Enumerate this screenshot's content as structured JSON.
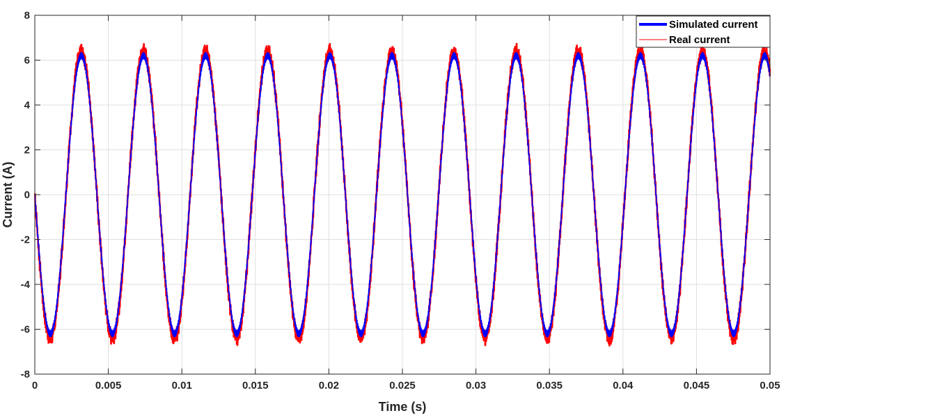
{
  "chart_data": {
    "type": "line",
    "title": "",
    "xlabel": "Time (s)",
    "ylabel": "Current (A)",
    "xlim": [
      0,
      0.05
    ],
    "ylim": [
      -8,
      8
    ],
    "xticks": [
      0,
      0.005,
      0.01,
      0.015,
      0.02,
      0.025,
      0.03,
      0.035,
      0.04,
      0.045,
      0.05
    ],
    "xtick_labels": [
      "0",
      "0.005",
      "0.01",
      "0.015",
      "0.02",
      "0.025",
      "0.03",
      "0.035",
      "0.04",
      "0.045",
      "0.05"
    ],
    "yticks": [
      -8,
      -6,
      -4,
      -2,
      0,
      2,
      4,
      6,
      8
    ],
    "ytick_labels": [
      "-8",
      "-6",
      "-4",
      "-2",
      "0",
      "2",
      "4",
      "6",
      "8"
    ],
    "grid": true,
    "legend_position": "top-right",
    "series": [
      {
        "name": "Simulated current",
        "color": "#0000ff",
        "amplitude": 6.2,
        "frequency_hz": 236.7,
        "phase_deg": 180,
        "offset": 0
      },
      {
        "name": "Real current",
        "color": "#ff0000",
        "amplitude": 6.4,
        "frequency_hz": 236.7,
        "phase_deg": 180,
        "offset": 0
      }
    ],
    "peaks_x": [
      0.0032,
      0.0074,
      0.0117,
      0.0159,
      0.0202,
      0.0244,
      0.0287,
      0.0329,
      0.0372,
      0.0414,
      0.0457
    ],
    "troughs_x": [
      0.0011,
      0.0053,
      0.0096,
      0.0138,
      0.0181,
      0.0223,
      0.0266,
      0.0308,
      0.0351,
      0.0393,
      0.0436,
      0.0478
    ]
  }
}
